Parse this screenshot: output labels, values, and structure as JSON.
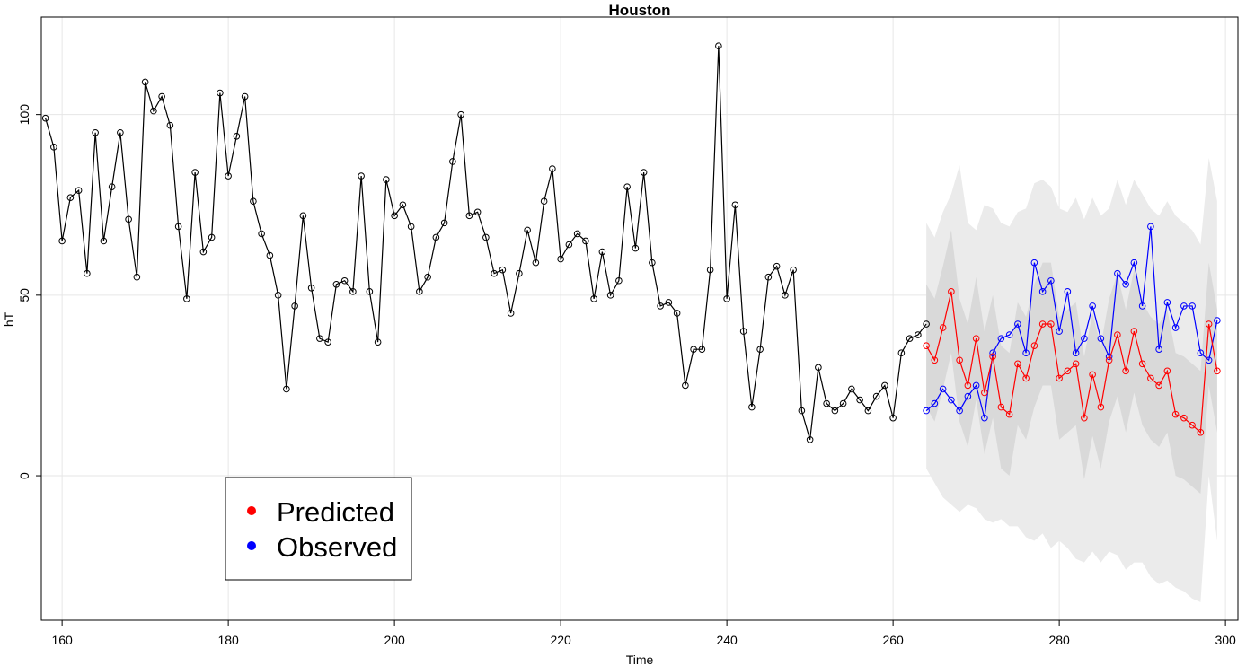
{
  "chart_data": {
    "type": "line",
    "title": "Houston",
    "xlabel": "Time",
    "ylabel": "hT",
    "xlim": [
      157.5,
      301.5
    ],
    "ylim": [
      -40,
      127
    ],
    "xticks": [
      160,
      180,
      200,
      220,
      240,
      260,
      280,
      300
    ],
    "yticks": [
      0,
      50,
      100
    ],
    "grid": true,
    "legend_position": "bottom-left",
    "legend": [
      {
        "label": "Predicted",
        "color": "#ff0000"
      },
      {
        "label": "Observed",
        "color": "#0000ff"
      }
    ],
    "history": {
      "x_start": 158,
      "values": [
        99,
        91,
        65,
        77,
        79,
        56,
        95,
        65,
        80,
        95,
        71,
        55,
        109,
        101,
        105,
        97,
        69,
        49,
        84,
        62,
        66,
        106,
        83,
        94,
        105,
        76,
        67,
        61,
        50,
        24,
        47,
        72,
        52,
        38,
        37,
        53,
        54,
        51,
        83,
        51,
        37,
        82,
        72,
        75,
        69,
        51,
        55,
        66,
        70,
        87,
        100,
        72,
        73,
        66,
        56,
        57,
        45,
        56,
        68,
        59,
        76,
        85,
        60,
        64,
        67,
        65,
        49,
        62,
        50,
        54,
        80,
        63,
        84,
        59,
        47,
        48,
        45,
        25,
        35,
        35,
        57,
        119,
        49,
        75,
        40,
        19,
        35,
        55,
        58,
        50,
        57,
        18,
        10,
        30,
        20,
        18,
        20,
        24,
        21,
        18,
        22,
        25,
        16,
        34,
        38,
        39,
        42
      ]
    },
    "series": [
      {
        "name": "Predicted",
        "color": "#ff0000",
        "x_start": 264,
        "values": [
          36,
          32,
          41,
          51,
          32,
          25,
          38,
          23,
          33,
          19,
          17,
          31,
          27,
          36,
          42,
          42,
          27,
          29,
          31,
          16,
          28,
          19,
          32,
          39,
          29,
          40,
          31,
          27,
          25,
          29,
          17,
          16,
          14,
          12,
          42,
          29
        ]
      },
      {
        "name": "Observed",
        "color": "#0000ff",
        "x_start": 264,
        "values": [
          18,
          20,
          24,
          21,
          18,
          22,
          25,
          16,
          34,
          38,
          39,
          42,
          34,
          59,
          51,
          54,
          40,
          51,
          34,
          38,
          47,
          38,
          33,
          56,
          53,
          59,
          47,
          69,
          35,
          48,
          41,
          47,
          47,
          34,
          32,
          43
        ]
      }
    ],
    "bands": {
      "x_start": 264,
      "outer_upper": [
        70,
        66,
        73,
        78,
        86,
        70,
        68,
        75,
        74,
        70,
        69,
        73,
        74,
        81,
        82,
        80,
        74,
        73,
        77,
        71,
        77,
        72,
        74,
        82,
        75,
        82,
        78,
        74,
        72,
        76,
        72,
        70,
        68,
        64,
        88,
        76
      ],
      "inner_upper": [
        53,
        49,
        58,
        68,
        49,
        42,
        55,
        40,
        50,
        36,
        34,
        48,
        44,
        53,
        59,
        59,
        44,
        46,
        48,
        33,
        45,
        36,
        49,
        56,
        46,
        57,
        48,
        44,
        42,
        46,
        34,
        33,
        31,
        29,
        59,
        46
      ],
      "inner_lower": [
        19,
        15,
        24,
        34,
        15,
        8,
        21,
        6,
        16,
        2,
        0,
        14,
        10,
        19,
        25,
        25,
        10,
        12,
        14,
        -1,
        11,
        2,
        15,
        22,
        12,
        23,
        14,
        10,
        8,
        12,
        0,
        -1,
        -3,
        -5,
        25,
        12
      ],
      "outer_lower": [
        2,
        -2,
        -6,
        -8,
        -10,
        -8,
        -9,
        -12,
        -13,
        -12,
        -14,
        -14,
        -17,
        -18,
        -16,
        -20,
        -18,
        -20,
        -23,
        -24,
        -21,
        -24,
        -21,
        -22,
        -26,
        -24,
        -24,
        -28,
        -30,
        -29,
        -31,
        -32,
        -34,
        -35,
        0,
        -18
      ]
    }
  }
}
